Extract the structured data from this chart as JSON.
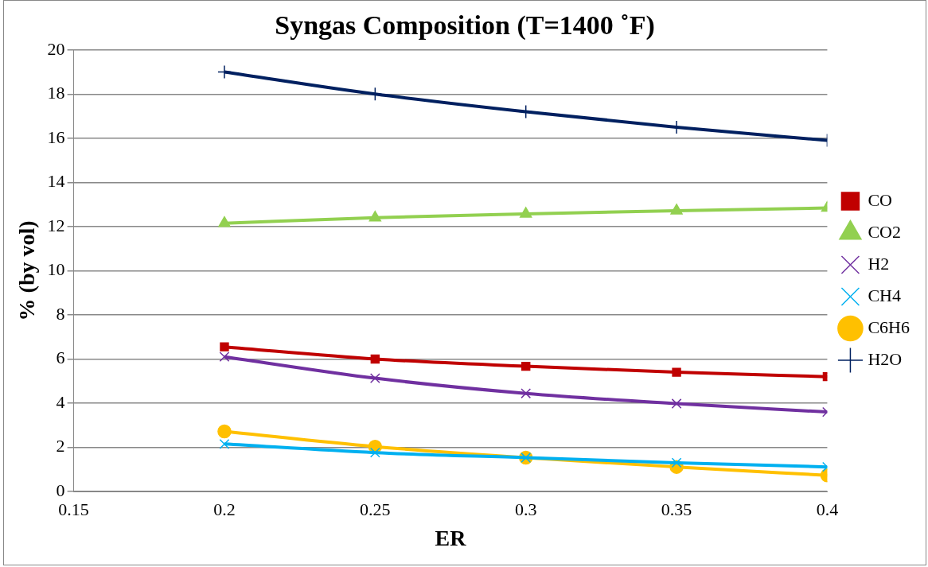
{
  "chart_data": {
    "type": "line",
    "title": "Syngas Composition (T=1400 ˚F)",
    "xlabel": "ER",
    "ylabel": "% (by vol)",
    "x": [
      0.2,
      0.25,
      0.3,
      0.35,
      0.4
    ],
    "xlim": [
      0.15,
      0.4
    ],
    "xticks": [
      0.15,
      0.2,
      0.25,
      0.3,
      0.35,
      0.4
    ],
    "ylim": [
      0,
      20
    ],
    "yticks": [
      0,
      2,
      4,
      6,
      8,
      10,
      12,
      14,
      16,
      18,
      20
    ],
    "grid": "y",
    "legend": "right",
    "line_style": "solid",
    "series": [
      {
        "name": "CO",
        "color": "#c00000",
        "marker": "square",
        "values": [
          6.55,
          6.0,
          5.67,
          5.4,
          5.2
        ]
      },
      {
        "name": "CO2",
        "color": "#92d050",
        "marker": "triangle",
        "values": [
          12.15,
          12.4,
          12.57,
          12.72,
          12.84
        ]
      },
      {
        "name": "H2",
        "color": "#7030a0",
        "marker": "cross",
        "values": [
          6.1,
          5.13,
          4.44,
          3.98,
          3.6
        ]
      },
      {
        "name": "CH4",
        "color": "#00b0f0",
        "marker": "cross",
        "values": [
          2.15,
          1.76,
          1.53,
          1.3,
          1.11
        ]
      },
      {
        "name": "C6H6",
        "color": "#ffc000",
        "marker": "circle",
        "values": [
          2.72,
          2.03,
          1.53,
          1.11,
          0.73
        ]
      },
      {
        "name": "H2O",
        "color": "#002060",
        "marker": "plus",
        "values": [
          19.0,
          18.0,
          17.2,
          16.5,
          15.9
        ]
      }
    ]
  }
}
